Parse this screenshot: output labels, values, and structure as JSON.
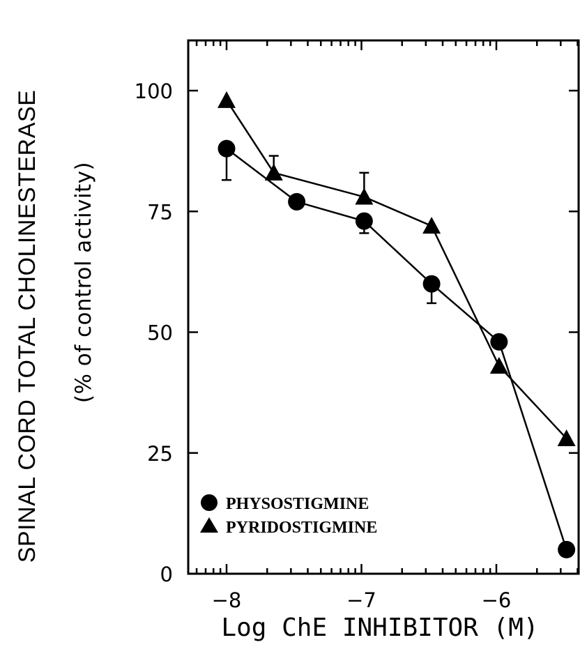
{
  "chart_data": {
    "type": "line",
    "title": "",
    "xlabel": "Log ChE INHIBITOR (M)",
    "ylabel": "SPINAL CORD TOTAL CHOLINESTERASE",
    "ylabel_sub": "(% of control activity)",
    "xlim": [
      -8.15,
      -5.5
    ],
    "ylim": [
      0,
      110
    ],
    "x_ticks": [
      -8,
      -7,
      -6
    ],
    "x_tick_labels": [
      "−8",
      "−7",
      "−6"
    ],
    "y_ticks": [
      0,
      25,
      50,
      75,
      100
    ],
    "y_tick_labels": [
      "0",
      "25",
      "50",
      "75",
      "100"
    ],
    "x_scale": "log-molar",
    "grid": false,
    "legend_position": "bottom-left",
    "series": [
      {
        "name": "PHYSOSTIGMINE",
        "marker": "circle",
        "x": [
          -8.0,
          -7.48,
          -6.98,
          -6.48,
          -5.98,
          -5.48
        ],
        "y": [
          88,
          77,
          73,
          60,
          48,
          5
        ],
        "err_low": [
          6.5,
          0,
          2.5,
          4.0,
          0,
          0
        ],
        "err_high": [
          0,
          0,
          0,
          0,
          0,
          0
        ]
      },
      {
        "name": "PYRIDOSTIGMINE",
        "marker": "triangle",
        "x": [
          -8.0,
          -7.65,
          -6.98,
          -6.48,
          -5.98,
          -5.48
        ],
        "y": [
          98,
          83,
          78,
          72,
          43,
          28
        ],
        "err_low": [
          0,
          0,
          0,
          0,
          0,
          0
        ],
        "err_high": [
          0,
          3.5,
          5.0,
          0,
          0,
          0
        ]
      }
    ]
  }
}
